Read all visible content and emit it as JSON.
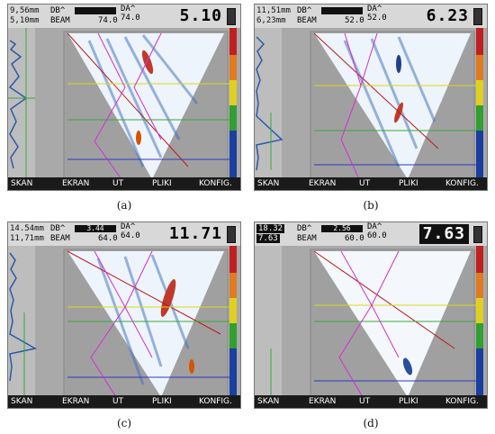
{
  "menu": [
    "SKAN",
    "EKRAN",
    "UT",
    "PLIKI",
    "KONFIG."
  ],
  "panels": [
    {
      "caption": "(a)",
      "readout1": "9,56mm",
      "readout2": "5,10mm",
      "db_label": "DB^",
      "db_value": "",
      "beam_label": "BEAM",
      "beam_value": "74.0",
      "da_label": "DA^",
      "da_value": "74.0",
      "big_value": "5.10"
    },
    {
      "caption": "(b)",
      "readout1": "11,51mm",
      "readout2": "6,23mm",
      "db_label": "DB^",
      "db_value": "",
      "beam_label": "BEAM",
      "beam_value": "52.0",
      "da_label": "DA^",
      "da_value": "52.0",
      "big_value": "6.23"
    },
    {
      "caption": "(c)",
      "readout1": "14.54mm",
      "readout2": "11,71mm",
      "db_label": "DB^",
      "db_value": "3.44",
      "beam_label": "BEAM",
      "beam_value": "64.0",
      "da_label": "DA^",
      "da_value": "64.0",
      "big_value": "11.71"
    },
    {
      "caption": "(d)",
      "readout1": "18.32",
      "readout2": "7.63",
      "db_label": "DB^",
      "db_value": "2.56",
      "beam_label": "BEAM",
      "beam_value": "60.0",
      "da_label": "DA^",
      "da_value": "60.0",
      "big_value": "7.63"
    }
  ]
}
